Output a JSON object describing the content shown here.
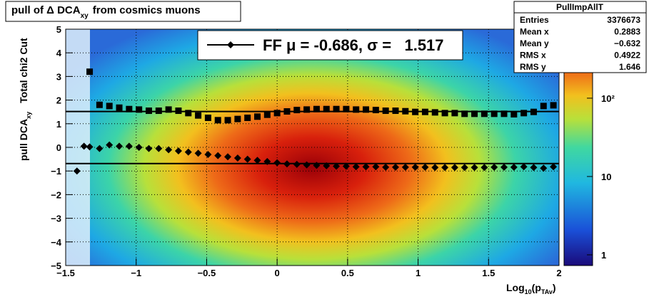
{
  "chart_data": {
    "type": "profile",
    "title": {
      "main": "pull of Δ DCA",
      "sub": "xy",
      "tail": "from cosmics muons"
    },
    "x_label": {
      "main": "Log",
      "sub1": "10",
      "mid": "(p",
      "sub2": "TAv",
      "tail": ")"
    },
    "y_label": {
      "main": "pull DCA",
      "sub": "xy",
      "tail": "Total chi2 Cut"
    },
    "xlim": [
      -1.5,
      2
    ],
    "xticks": [
      {
        "value": -1.5,
        "label": "−1.5"
      },
      {
        "value": -1,
        "label": "−1"
      },
      {
        "value": -0.5,
        "label": "−0.5"
      },
      0,
      0.5,
      1,
      1.5,
      2
    ],
    "ylim": [
      -5,
      5
    ],
    "yticks": [
      {
        "value": -5,
        "label": "−5"
      },
      {
        "value": -4,
        "label": "−4"
      },
      {
        "value": -3,
        "label": "−3"
      },
      {
        "value": -2,
        "label": "−2"
      },
      {
        "value": -1,
        "label": "−1"
      },
      0,
      1,
      2,
      3,
      4,
      5
    ],
    "grid": true,
    "zlim": [
      0.73,
      760
    ],
    "zlog": true,
    "zticks": [
      1,
      10,
      {
        "value": 100,
        "label": "10²"
      }
    ],
    "series": [
      {
        "marker": "square",
        "color": "#000000",
        "x": [
          -1.33,
          -1.26,
          -1.19,
          -1.12,
          -1.05,
          -0.98,
          -0.91,
          -0.84,
          -0.77,
          -0.7,
          -0.63,
          -0.56,
          -0.49,
          -0.42,
          -0.35,
          -0.28,
          -0.21,
          -0.14,
          -0.07,
          0,
          0.07,
          0.14,
          0.21,
          0.28,
          0.35,
          0.42,
          0.49,
          0.56,
          0.63,
          0.7,
          0.77,
          0.84,
          0.91,
          0.98,
          1.05,
          1.12,
          1.19,
          1.26,
          1.33,
          1.4,
          1.47,
          1.54,
          1.61,
          1.68,
          1.75,
          1.82,
          1.89,
          1.96
        ],
        "values": [
          3.2,
          1.8,
          1.75,
          1.68,
          1.62,
          1.6,
          1.55,
          1.55,
          1.6,
          1.55,
          1.45,
          1.35,
          1.25,
          1.15,
          1.15,
          1.2,
          1.25,
          1.3,
          1.38,
          1.45,
          1.52,
          1.58,
          1.6,
          1.62,
          1.62,
          1.62,
          1.62,
          1.6,
          1.6,
          1.58,
          1.55,
          1.55,
          1.53,
          1.5,
          1.5,
          1.48,
          1.45,
          1.45,
          1.42,
          1.42,
          1.42,
          1.42,
          1.42,
          1.4,
          1.45,
          1.5,
          1.75,
          1.78
        ]
      },
      {
        "marker": "diamond",
        "color": "#000000",
        "x": [
          -1.42,
          -1.37,
          -1.33,
          -1.26,
          -1.19,
          -1.12,
          -1.05,
          -0.98,
          -0.91,
          -0.84,
          -0.77,
          -0.7,
          -0.63,
          -0.56,
          -0.49,
          -0.42,
          -0.35,
          -0.28,
          -0.21,
          -0.14,
          -0.07,
          0,
          0.07,
          0.14,
          0.21,
          0.28,
          0.35,
          0.42,
          0.49,
          0.56,
          0.63,
          0.7,
          0.77,
          0.84,
          0.91,
          0.98,
          1.05,
          1.12,
          1.19,
          1.26,
          1.33,
          1.4,
          1.47,
          1.54,
          1.61,
          1.68,
          1.75,
          1.82,
          1.89,
          1.96
        ],
        "values": [
          -1,
          0.05,
          0.02,
          -0.05,
          0.1,
          0.05,
          0.05,
          0,
          -0.05,
          -0.05,
          -0.1,
          -0.15,
          -0.2,
          -0.25,
          -0.3,
          -0.35,
          -0.4,
          -0.45,
          -0.5,
          -0.55,
          -0.6,
          -0.65,
          -0.7,
          -0.72,
          -0.74,
          -0.76,
          -0.78,
          -0.8,
          -0.8,
          -0.82,
          -0.82,
          -0.82,
          -0.84,
          -0.84,
          -0.84,
          -0.84,
          -0.84,
          -0.85,
          -0.85,
          -0.85,
          -0.85,
          -0.85,
          -0.85,
          -0.84,
          -0.84,
          -0.84,
          -0.82,
          -0.85,
          -0.88,
          -0.82
        ]
      }
    ],
    "fit_mean": -0.686,
    "fit_sigma": 1.517,
    "legend_label": "FF μ = -0.686, σ =   1.517",
    "stats": {
      "title": "PullImpAllT",
      "rows": [
        [
          "Entries",
          "3376673"
        ],
        [
          "Mean x",
          "0.2883"
        ],
        [
          "Mean y",
          "−0.632"
        ],
        [
          "RMS x",
          "0.4922"
        ],
        [
          "RMS y",
          "1.646"
        ]
      ]
    }
  }
}
